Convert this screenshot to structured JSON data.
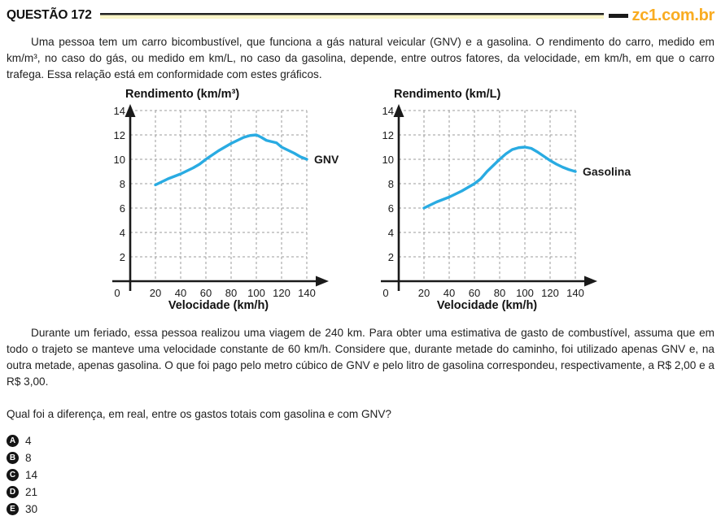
{
  "header": {
    "question_label": "QUESTÃO 172",
    "site": "zc1.com.br"
  },
  "intro": "Uma pessoa tem um carro bicombustível, que funciona a gás natural veicular (GNV) e a gasolina. O rendimento do carro, medido em km/m³, no caso do gás, ou medido em km/L, no caso da gasolina, depende, entre outros fatores, da velocidade, em km/h, em que o carro trafega. Essa relação está em conformidade com estes gráficos.",
  "body_paragraph": "Durante um feriado, essa pessoa realizou uma viagem de 240 km. Para obter uma estimativa de gasto de combustível, assuma que em todo o trajeto se manteve uma velocidade constante de 60 km/h. Considere que, durante metade do caminho, foi utilizado apenas GNV e, na outra metade, apenas gasolina. O que foi pago pelo metro cúbico de GNV e pelo litro de gasolina correspondeu, respectivamente, a R$ 2,00 e a R$ 3,00.",
  "question": "Qual foi a diferença, em real, entre os gastos totais com gasolina e com GNV?",
  "options": [
    {
      "letter": "A",
      "text": "4"
    },
    {
      "letter": "B",
      "text": "8"
    },
    {
      "letter": "C",
      "text": "14"
    },
    {
      "letter": "D",
      "text": "21"
    },
    {
      "letter": "E",
      "text": "30"
    }
  ],
  "colors": {
    "brand_yellow": "#F9AC21",
    "rule_pale_yellow": "#FAF5C8",
    "curve_blue": "#29ABE2",
    "grid_gray": "#9b9b9b",
    "axis_black": "#1a1a1a"
  },
  "chart_data": [
    {
      "type": "line",
      "title": "Rendimento (km/m³)",
      "xlabel": "Velocidade (km/h)",
      "ylabel": "Rendimento (km/m³)",
      "origin_label": "0",
      "xlim": [
        0,
        150
      ],
      "ylim": [
        0,
        15
      ],
      "xticks": [
        20,
        40,
        60,
        80,
        100,
        120,
        140
      ],
      "yticks": [
        2,
        4,
        6,
        8,
        10,
        12,
        14
      ],
      "grid": true,
      "legend_position": "right-of-curve-end",
      "line_color": "#29ABE2",
      "series": [
        {
          "name": "GNV",
          "x": [
            20,
            25,
            30,
            35,
            40,
            45,
            50,
            55,
            60,
            65,
            70,
            75,
            80,
            85,
            90,
            95,
            100,
            104,
            108,
            112,
            116,
            120,
            125,
            130,
            135,
            140
          ],
          "y": [
            7.9,
            8.15,
            8.4,
            8.6,
            8.8,
            9.05,
            9.3,
            9.6,
            10.0,
            10.35,
            10.7,
            11.0,
            11.3,
            11.55,
            11.8,
            11.95,
            12.0,
            11.8,
            11.55,
            11.45,
            11.35,
            11.0,
            10.75,
            10.5,
            10.2,
            10.0
          ]
        }
      ]
    },
    {
      "type": "line",
      "title": "Rendimento (km/L)",
      "xlabel": "Velocidade (km/h)",
      "ylabel": "Rendimento (km/L)",
      "origin_label": "0",
      "xlim": [
        0,
        150
      ],
      "ylim": [
        0,
        15
      ],
      "xticks": [
        20,
        40,
        60,
        80,
        100,
        120,
        140
      ],
      "yticks": [
        2,
        4,
        6,
        8,
        10,
        12,
        14
      ],
      "grid": true,
      "legend_position": "right-of-curve-end",
      "line_color": "#29ABE2",
      "series": [
        {
          "name": "Gasolina",
          "x": [
            20,
            30,
            40,
            50,
            60,
            65,
            70,
            75,
            80,
            85,
            90,
            95,
            100,
            105,
            110,
            115,
            120,
            125,
            130,
            135,
            140
          ],
          "y": [
            6.0,
            6.5,
            6.9,
            7.4,
            8.0,
            8.4,
            9.0,
            9.5,
            10.0,
            10.45,
            10.8,
            10.95,
            11.0,
            10.9,
            10.6,
            10.25,
            9.9,
            9.6,
            9.35,
            9.15,
            9.0
          ]
        }
      ]
    }
  ]
}
